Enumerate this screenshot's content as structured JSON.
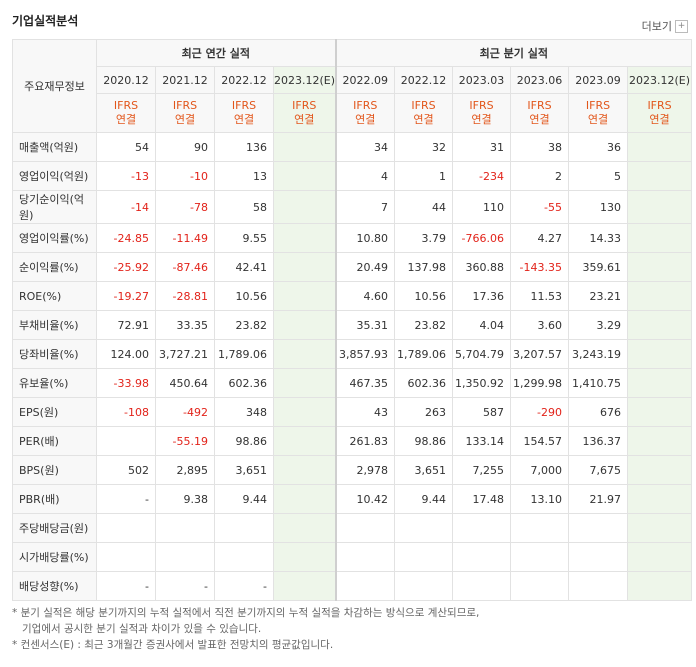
{
  "title": "기업실적분석",
  "more_label": "더보기",
  "more_icon": "plus-box-icon",
  "row_header": "주요재무정보",
  "group_annual": "최근 연간 실적",
  "group_quarter": "최근 분기 실적",
  "periods": [
    "2020.12",
    "2021.12",
    "2022.12",
    "2023.12(E)",
    "2022.09",
    "2022.12",
    "2023.03",
    "2023.06",
    "2023.09",
    "2023.12(E)"
  ],
  "ifrs_line1": "IFRS",
  "ifrs_line2": "연결",
  "rows": [
    {
      "label": "매출액(억원)",
      "values": [
        "54",
        "90",
        "136",
        "",
        "34",
        "32",
        "31",
        "38",
        "36",
        ""
      ]
    },
    {
      "label": "영업이익(억원)",
      "values": [
        "-13",
        "-10",
        "13",
        "",
        "4",
        "1",
        "-234",
        "2",
        "5",
        ""
      ]
    },
    {
      "label": "당기순이익(억원)",
      "values": [
        "-14",
        "-78",
        "58",
        "",
        "7",
        "44",
        "110",
        "-55",
        "130",
        ""
      ]
    },
    {
      "label": "영업이익률(%)",
      "values": [
        "-24.85",
        "-11.49",
        "9.55",
        "",
        "10.80",
        "3.79",
        "-766.06",
        "4.27",
        "14.33",
        ""
      ]
    },
    {
      "label": "순이익률(%)",
      "values": [
        "-25.92",
        "-87.46",
        "42.41",
        "",
        "20.49",
        "137.98",
        "360.88",
        "-143.35",
        "359.61",
        ""
      ]
    },
    {
      "label": "ROE(%)",
      "values": [
        "-19.27",
        "-28.81",
        "10.56",
        "",
        "4.60",
        "10.56",
        "17.36",
        "11.53",
        "23.21",
        ""
      ]
    },
    {
      "label": "부채비율(%)",
      "values": [
        "72.91",
        "33.35",
        "23.82",
        "",
        "35.31",
        "23.82",
        "4.04",
        "3.60",
        "3.29",
        ""
      ]
    },
    {
      "label": "당좌비율(%)",
      "values": [
        "124.00",
        "3,727.21",
        "1,789.06",
        "",
        "3,857.93",
        "1,789.06",
        "5,704.79",
        "3,207.57",
        "3,243.19",
        ""
      ]
    },
    {
      "label": "유보율(%)",
      "values": [
        "-33.98",
        "450.64",
        "602.36",
        "",
        "467.35",
        "602.36",
        "1,350.92",
        "1,299.98",
        "1,410.75",
        ""
      ]
    },
    {
      "label": "EPS(원)",
      "values": [
        "-108",
        "-492",
        "348",
        "",
        "43",
        "263",
        "587",
        "-290",
        "676",
        ""
      ]
    },
    {
      "label": "PER(배)",
      "values": [
        "",
        "-55.19",
        "98.86",
        "",
        "261.83",
        "98.86",
        "133.14",
        "154.57",
        "136.37",
        ""
      ]
    },
    {
      "label": "BPS(원)",
      "values": [
        "502",
        "2,895",
        "3,651",
        "",
        "2,978",
        "3,651",
        "7,255",
        "7,000",
        "7,675",
        ""
      ]
    },
    {
      "label": "PBR(배)",
      "values": [
        "-",
        "9.38",
        "9.44",
        "",
        "10.42",
        "9.44",
        "17.48",
        "13.10",
        "21.97",
        ""
      ]
    },
    {
      "label": "주당배당금(원)",
      "values": [
        "",
        "",
        "",
        "",
        "",
        "",
        "",
        "",
        "",
        ""
      ]
    },
    {
      "label": "시가배당률(%)",
      "values": [
        "",
        "",
        "",
        "",
        "",
        "",
        "",
        "",
        "",
        ""
      ]
    },
    {
      "label": "배당성향(%)",
      "values": [
        "-",
        "-",
        "-",
        "",
        "",
        "",
        "",
        "",
        "",
        ""
      ]
    }
  ],
  "notes": [
    "* 분기 실적은 해당 분기까지의 누적 실적에서 직전 분기까지의 누적 실적을 차감하는 방식으로 계산되므로,",
    "기업에서 공시한 분기 실적과 차이가 있을 수 있습니다.",
    "* 컨센서스(E) : 최근 3개월간 증권사에서 발표한 전망치의 평균값입니다."
  ]
}
